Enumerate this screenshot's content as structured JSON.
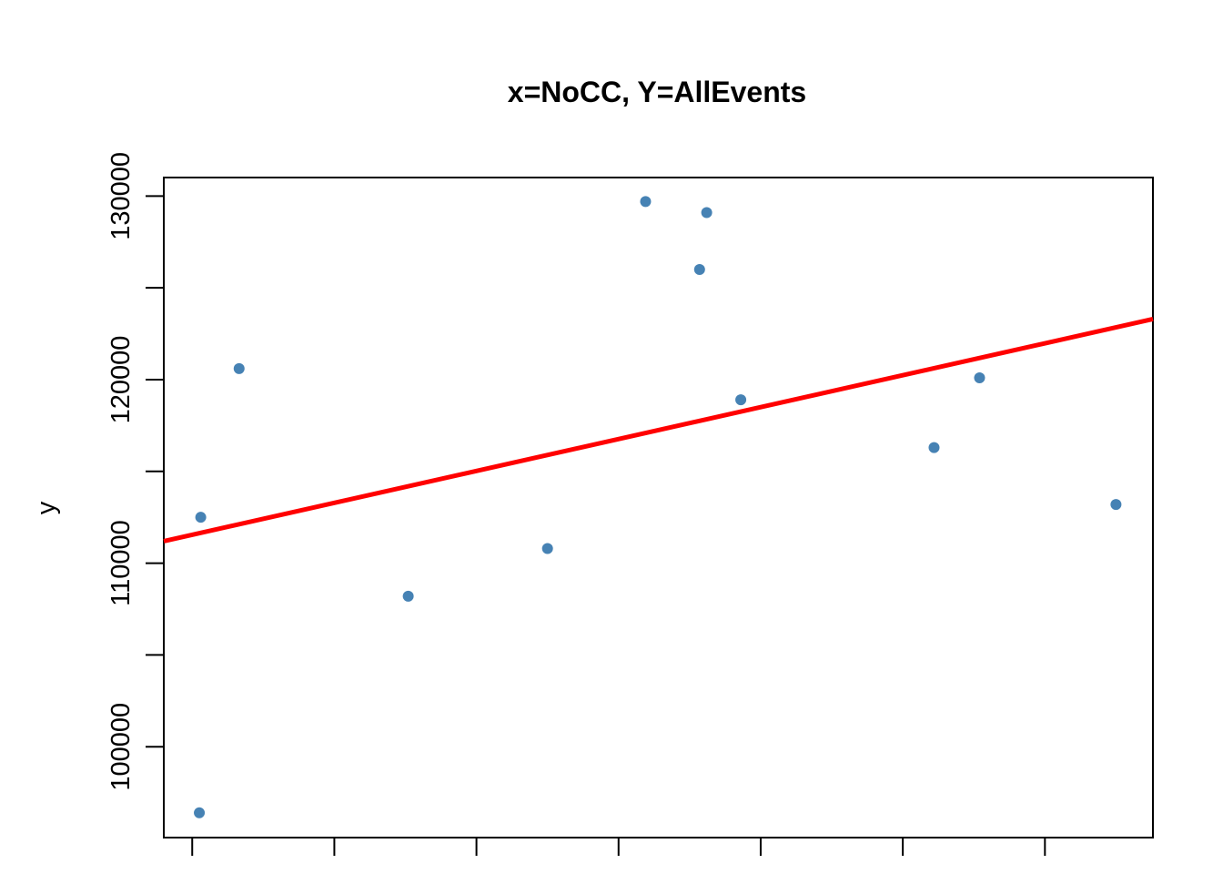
{
  "chart_data": {
    "type": "scatter",
    "title": "x=NoCC, Y=AllEvents",
    "xlabel": "",
    "ylabel": "y",
    "x_tick_labels_visible": false,
    "xlim": [
      0.0,
      7.0
    ],
    "ylim": [
      96000,
      131000
    ],
    "x_ticks": [
      0,
      1,
      2,
      3,
      4,
      5,
      6
    ],
    "y_ticks": [
      100000,
      105000,
      110000,
      115000,
      120000,
      125000,
      130000
    ],
    "y_tick_labels": [
      "100000",
      "",
      "110000",
      "",
      "120000",
      "",
      "130000"
    ],
    "points": [
      {
        "x": 0.05,
        "y": 96400
      },
      {
        "x": 0.06,
        "y": 112500
      },
      {
        "x": 0.33,
        "y": 120600
      },
      {
        "x": 1.52,
        "y": 108200
      },
      {
        "x": 2.5,
        "y": 110800
      },
      {
        "x": 3.19,
        "y": 129700
      },
      {
        "x": 3.57,
        "y": 126000
      },
      {
        "x": 3.62,
        "y": 129100
      },
      {
        "x": 3.86,
        "y": 118900
      },
      {
        "x": 5.22,
        "y": 116300
      },
      {
        "x": 5.54,
        "y": 120100
      },
      {
        "x": 6.5,
        "y": 113200
      }
    ],
    "fit_line": {
      "x": [
        -0.2,
        6.76
      ],
      "y": [
        111200,
        123300
      ]
    },
    "point_color": "#4682B4",
    "line_color": "#FF0000",
    "grid": false,
    "box": true
  }
}
